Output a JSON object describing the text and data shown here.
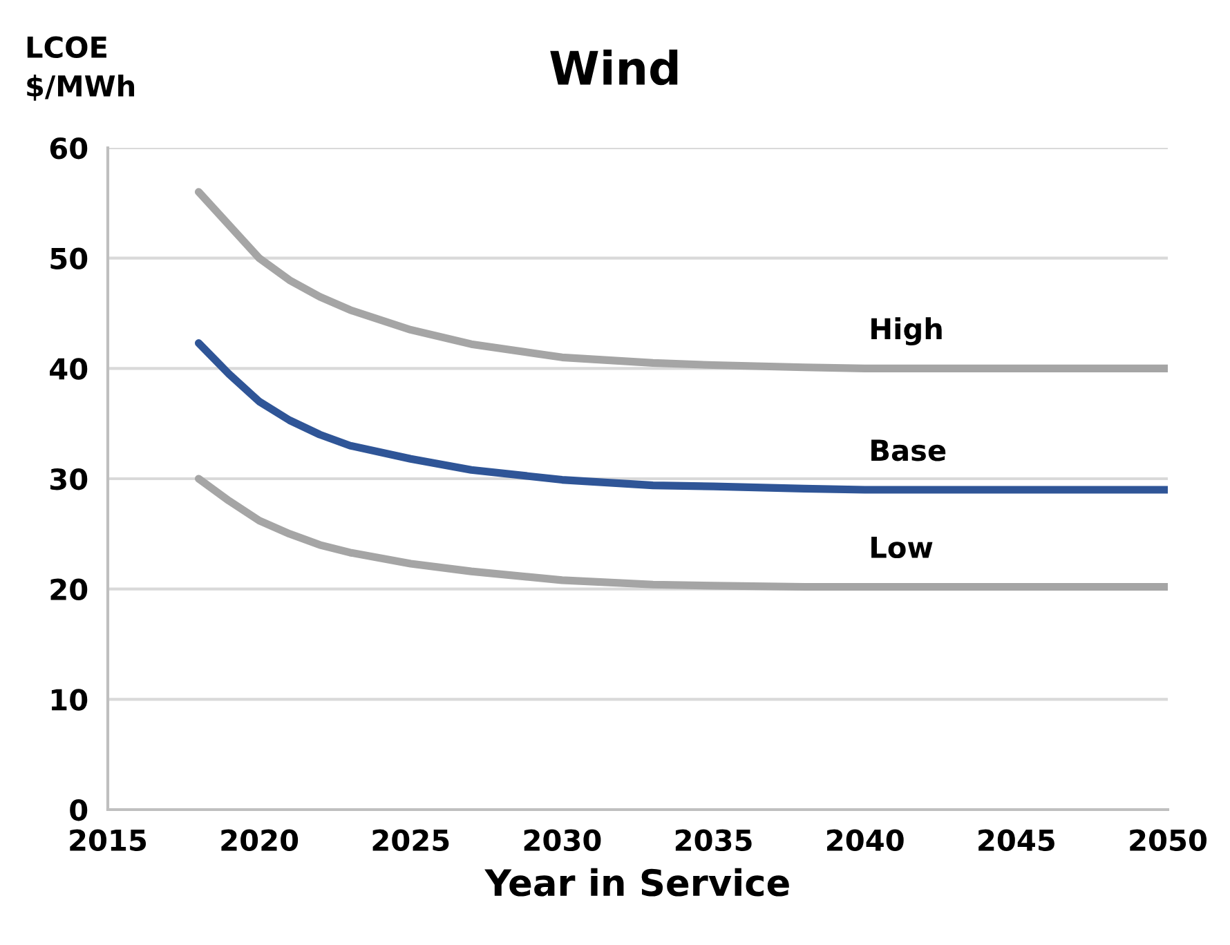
{
  "chart_data": {
    "type": "line",
    "title": "Wind",
    "ylabel": "LCOE\n$/MWh",
    "xlabel": "Year in Service",
    "x": [
      2018,
      2019,
      2020,
      2021,
      2022,
      2023,
      2025,
      2027,
      2030,
      2033,
      2035,
      2038,
      2040,
      2045,
      2050
    ],
    "series": [
      {
        "name": "High",
        "color": "#a5a5a5",
        "values": [
          56,
          53,
          50,
          48,
          46.5,
          45.3,
          43.5,
          42.2,
          41,
          40.5,
          40.3,
          40.1,
          40,
          40,
          40
        ]
      },
      {
        "name": "Base",
        "color": "#2f5597",
        "values": [
          42.3,
          39.5,
          37,
          35.3,
          34,
          33,
          31.8,
          30.8,
          29.9,
          29.4,
          29.3,
          29.1,
          29,
          29,
          29
        ]
      },
      {
        "name": "Low",
        "color": "#a5a5a5",
        "values": [
          30,
          28,
          26.2,
          25,
          24,
          23.3,
          22.3,
          21.6,
          20.8,
          20.4,
          20.3,
          20.2,
          20.2,
          20.2,
          20.2
        ]
      }
    ],
    "xlim": [
      2015,
      2050
    ],
    "xticks": [
      2015,
      2020,
      2025,
      2030,
      2035,
      2040,
      2045,
      2050
    ],
    "ylim": [
      0,
      60
    ],
    "yticks": [
      0,
      10,
      20,
      30,
      40,
      50,
      60
    ],
    "grid": "y",
    "legend": false,
    "marker": "none",
    "line_style": "solid"
  }
}
